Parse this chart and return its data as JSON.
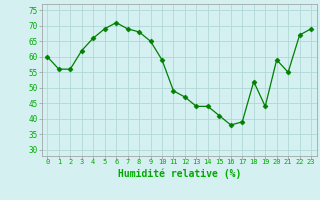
{
  "x": [
    0,
    1,
    2,
    3,
    4,
    5,
    6,
    7,
    8,
    9,
    10,
    11,
    12,
    13,
    14,
    15,
    16,
    17,
    18,
    19,
    20,
    21,
    22,
    23
  ],
  "y": [
    60,
    56,
    56,
    62,
    66,
    69,
    71,
    69,
    68,
    65,
    59,
    49,
    47,
    44,
    44,
    41,
    38,
    39,
    52,
    44,
    59,
    55,
    67,
    69
  ],
  "line_color": "#008000",
  "marker_color": "#008000",
  "bg_color": "#d4f0f0",
  "grid_color": "#b0d8d8",
  "xlabel": "Humidité relative (%)",
  "xlabel_color": "#00aa00",
  "tick_color": "#00aa00",
  "ylim": [
    28,
    77
  ],
  "yticks": [
    30,
    35,
    40,
    45,
    50,
    55,
    60,
    65,
    70,
    75
  ],
  "xlim": [
    -0.5,
    23.5
  ]
}
